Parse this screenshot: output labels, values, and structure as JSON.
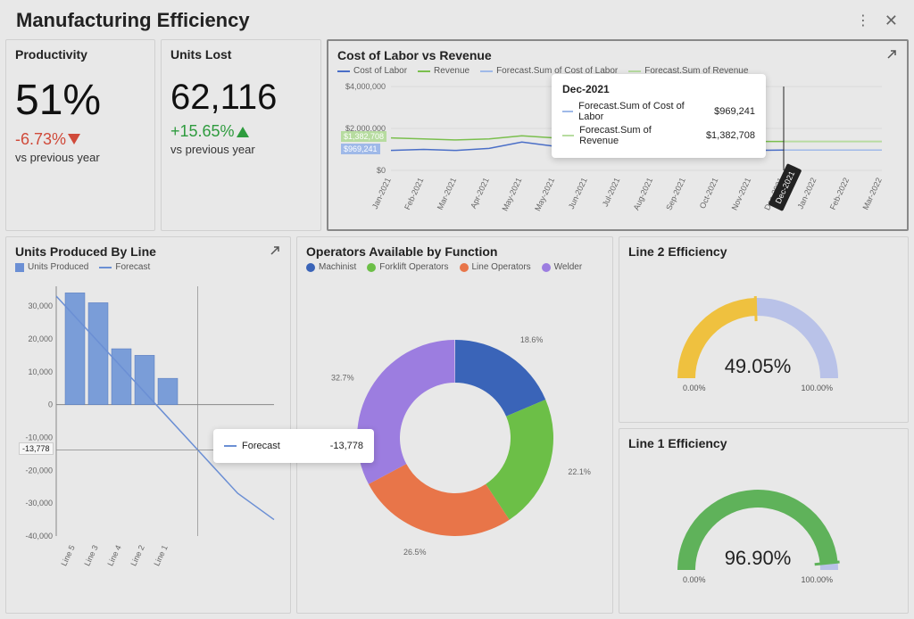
{
  "header": {
    "title": "Manufacturing Efficiency"
  },
  "kpi_productivity": {
    "title": "Productivity",
    "value": "51%",
    "delta": "-6.73%",
    "delta_dir": "down",
    "sub": "vs previous year"
  },
  "kpi_units_lost": {
    "title": "Units Lost",
    "value": "62,116",
    "delta": "+15.65%",
    "delta_dir": "up",
    "sub": "vs previous year"
  },
  "cost_rev": {
    "title": "Cost of Labor vs Revenue",
    "legend": [
      {
        "label": "Cost of Labor",
        "color": "#4a6ec7"
      },
      {
        "label": "Revenue",
        "color": "#7abf4d"
      },
      {
        "label": "Forecast.Sum of Cost of Labor",
        "color": "#9fb9e8"
      },
      {
        "label": "Forecast.Sum of Revenue",
        "color": "#b7dca0"
      }
    ],
    "y_ticks": [
      "$4,000,000",
      "$2,000,000",
      "$0"
    ],
    "x_labels": [
      "Jan-2021",
      "Feb-2021",
      "Mar-2021",
      "Apr-2021",
      "May-2021",
      "May-2021",
      "Jun-2021",
      "Jul-2021",
      "Aug-2021",
      "Sep-2021",
      "Oct-2021",
      "Nov-2021",
      "Dec-2021",
      "Jan-2022",
      "Feb-2022",
      "Mar-2022"
    ],
    "series": {
      "cost": [
        0.95,
        1.0,
        0.95,
        1.05,
        1.35,
        1.15,
        1.15,
        1.05,
        1.0,
        0.95,
        0.95,
        0.95,
        0.97,
        0.97,
        0.97,
        0.97
      ],
      "revenue": [
        1.55,
        1.5,
        1.45,
        1.5,
        1.65,
        1.55,
        1.55,
        1.45,
        1.4,
        1.4,
        1.35,
        1.38,
        1.38,
        1.38,
        1.38,
        1.38
      ],
      "fc_cost": [
        0.97
      ],
      "fc_rev": [
        1.38
      ]
    },
    "ylim": [
      0,
      4000000
    ],
    "background": "#e8e8e8",
    "grid_color": "#cccccc",
    "anno_top": {
      "text": "$1,382,708",
      "color_bg": "#b7dca0"
    },
    "anno_bot": {
      "text": "$969,241",
      "color_bg": "#9fb9e8"
    },
    "tooltip": {
      "title": "Dec-2021",
      "rows": [
        {
          "swatch": "#9fb9e8",
          "label": "Forecast.Sum of Cost of Labor",
          "value": "$969,241"
        },
        {
          "swatch": "#b7dca0",
          "label": "Forecast.Sum of Revenue",
          "value": "$1,382,708"
        }
      ]
    },
    "badge": "Dec-2021"
  },
  "units_produced": {
    "title": "Units Produced By Line",
    "legend": [
      {
        "label": "Units Produced",
        "color": "#6b8fd4",
        "type": "sq"
      },
      {
        "label": "Forecast",
        "color": "#6b8fd4",
        "type": "line"
      }
    ],
    "y_ticks": [
      "30,000",
      "20,000",
      "10,000",
      "0",
      "-10,000",
      "-20,000",
      "-30,000",
      "-40,000"
    ],
    "x_labels": [
      "Line 5",
      "Line 3",
      "Line 4",
      "Line 2",
      "Line 1"
    ],
    "bars": [
      34000,
      31000,
      17000,
      15000,
      8000
    ],
    "bar_color": "#7a9dd8",
    "forecast_line": [
      33000,
      21000,
      9000,
      -3000,
      -15000,
      -27000,
      -35000
    ],
    "line_color": "#6b8fd4",
    "ylim": [
      -40000,
      36000
    ],
    "anno": {
      "text": "-13,778",
      "y_val": -13778
    },
    "tooltip": {
      "swatch": "#6b8fd4",
      "label": "Forecast",
      "value": "-13,778"
    }
  },
  "operators": {
    "title": "Operators Available by Function",
    "legend": [
      {
        "label": "Machinist",
        "color": "#3a64b8"
      },
      {
        "label": "Forklift Operators",
        "color": "#6cbf47"
      },
      {
        "label": "Line Operators",
        "color": "#e87549"
      },
      {
        "label": "Welder",
        "color": "#9c7de0"
      }
    ],
    "slices": [
      {
        "label": "18.6%",
        "pct": 18.6,
        "color": "#3a64b8"
      },
      {
        "label": "22.1%",
        "pct": 22.1,
        "color": "#6cbf47"
      },
      {
        "label": "26.5%",
        "pct": 26.5,
        "color": "#e87549"
      },
      {
        "label": "32.7%",
        "pct": 32.7,
        "color": "#9c7de0"
      }
    ],
    "background": "#e8e8e8"
  },
  "gauge2": {
    "title": "Line 2 Efficiency",
    "value": "49.05%",
    "pct": 49.05,
    "min": "0.00%",
    "max": "100.00%",
    "fill_color": "#efc13f",
    "track_color": "#b9c2e8",
    "marker_color": "#efc13f"
  },
  "gauge1": {
    "title": "Line 1 Efficiency",
    "value": "96.90%",
    "pct": 96.9,
    "min": "0.00%",
    "max": "100.00%",
    "fill_color": "#5fb25a",
    "track_color": "#b9c2e8",
    "marker_color": "#5fb25a"
  }
}
